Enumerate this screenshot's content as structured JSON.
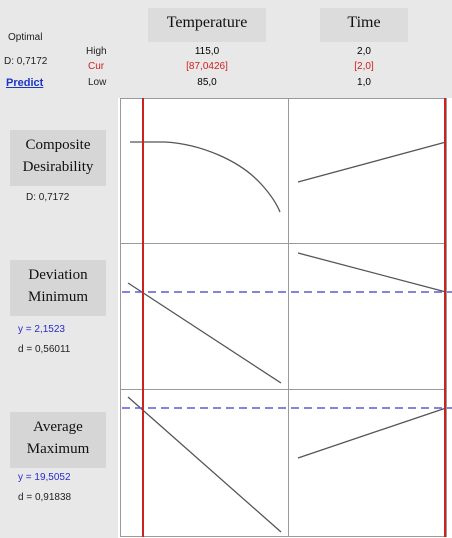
{
  "header": {
    "optimal_label": "Optimal",
    "d_value": "D: 0,7172",
    "predict_label": "Predict",
    "row_labels": {
      "high": "High",
      "cur": "Cur",
      "low": "Low"
    }
  },
  "factors": [
    {
      "name": "Temperature",
      "high": "115,0",
      "cur": "[87,0426]",
      "low": "85,0"
    },
    {
      "name": "Time",
      "high": "2,0",
      "cur": "[2,0]",
      "low": "1,0"
    }
  ],
  "responses": [
    {
      "title_line1": "Composite",
      "title_line2": "Desirability",
      "d_text": "D: 0,7172"
    },
    {
      "title_line1": "Deviation",
      "title_line2": "Minimum",
      "y_text": "y = 2,1523",
      "d_text": "d = 0,56011"
    },
    {
      "title_line1": "Average",
      "title_line2": "Maximum",
      "y_text": "y = 19,5052",
      "d_text": "d = 0,91838"
    }
  ],
  "colors": {
    "current_line": "#cc2222",
    "target_line": "#5b5bd6",
    "curve": "#555555",
    "grid": "#9a9a9a"
  }
}
